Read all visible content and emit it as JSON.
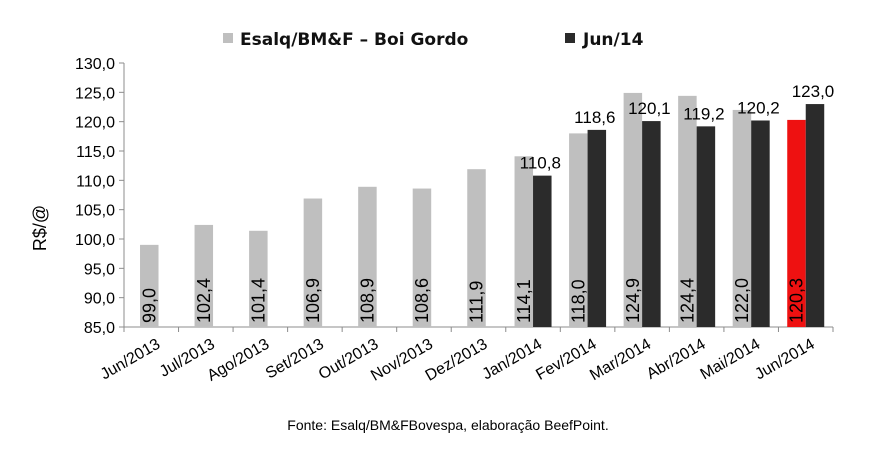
{
  "chart_data": {
    "type": "bar",
    "title": "",
    "ylabel": "R$/@",
    "xlabel": "",
    "ylim": [
      85,
      130
    ],
    "yticks": [
      "85,0",
      "90,0",
      "95,0",
      "100,0",
      "105,0",
      "110,0",
      "115,0",
      "120,0",
      "125,0",
      "130,0"
    ],
    "ytick_values": [
      85,
      90,
      95,
      100,
      105,
      110,
      115,
      120,
      125,
      130
    ],
    "categories": [
      "Jun/2013",
      "Jul/2013",
      "Ago/2013",
      "Set/2013",
      "Out/2013",
      "Nov/2013",
      "Dez/2013",
      "Jan/2014",
      "Fev/2014",
      "Mar/2014",
      "Abr/2014",
      "Mai/2014",
      "Jun/2014"
    ],
    "series": [
      {
        "name": "Esalq/BM&F – Boi Gordo",
        "color": "#bfbfbf",
        "values": [
          99.0,
          102.4,
          101.4,
          106.9,
          108.9,
          108.6,
          111.9,
          114.1,
          118.0,
          124.9,
          124.4,
          122.0,
          120.3
        ],
        "labels": [
          "99,0",
          "102,4",
          "101,4",
          "106,9",
          "108,9",
          "108,6",
          "111,9",
          "114,1",
          "118,0",
          "124,9",
          "124,4",
          "122,0",
          "120,3"
        ],
        "highlight_index": 12,
        "highlight_color": "#ee1111"
      },
      {
        "name": "Jun/14",
        "color": "#2b2b2b",
        "values": [
          null,
          null,
          null,
          null,
          null,
          null,
          null,
          110.8,
          118.6,
          120.1,
          119.2,
          120.2,
          123.0
        ],
        "labels": [
          null,
          null,
          null,
          null,
          null,
          null,
          null,
          "110,8",
          "118,6",
          "120,1",
          "119,2",
          "120,2",
          "123,0"
        ]
      }
    ],
    "legend": "top-center",
    "grid": false,
    "source_note": "Fonte: Esalq/BM&FBovespa, elaboração BeefPoint."
  }
}
